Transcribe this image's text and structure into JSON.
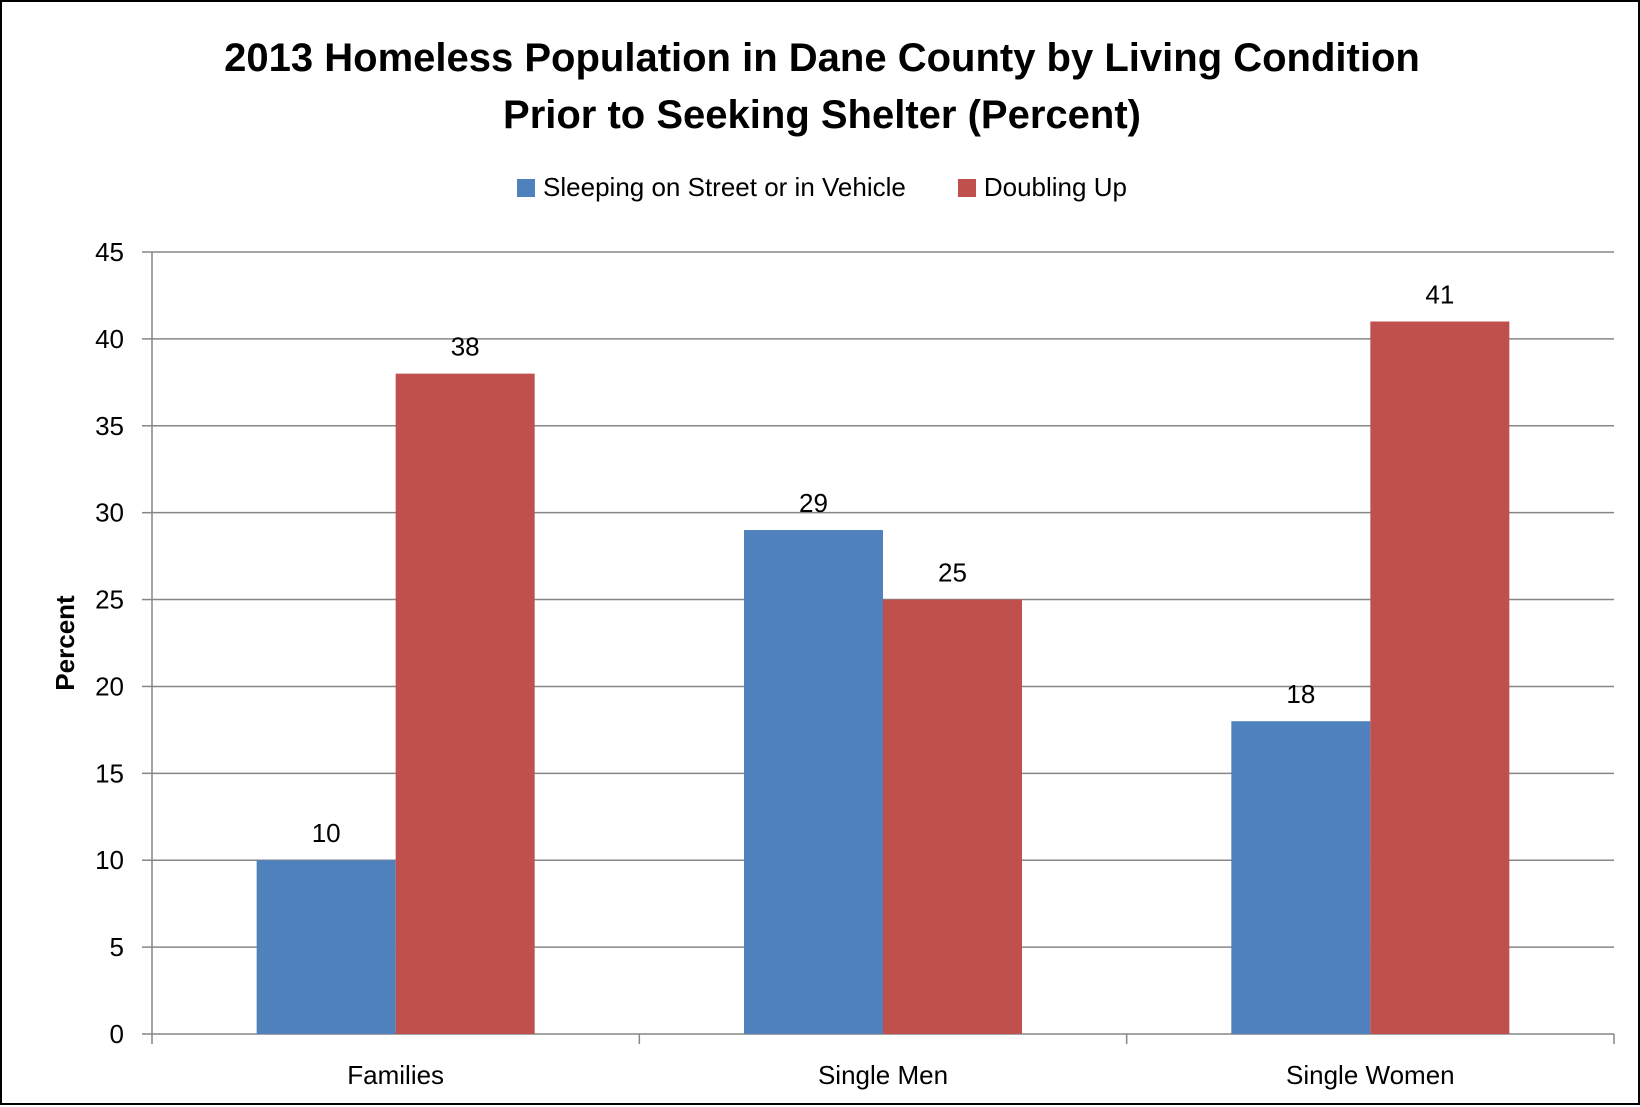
{
  "chart_data": {
    "type": "bar",
    "title_line1": "2013 Homeless Population in Dane County by Living Condition",
    "title_line2": "Prior to Seeking Shelter (Percent)",
    "xlabel": "",
    "ylabel": "Percent",
    "categories": [
      "Families",
      "Single Men",
      "Single Women"
    ],
    "series": [
      {
        "name": "Sleeping on Street or in Vehicle",
        "values": [
          10,
          29,
          18
        ],
        "color": "#4F81BD"
      },
      {
        "name": "Doubling Up",
        "values": [
          38,
          25,
          41
        ],
        "color": "#C0504D"
      }
    ],
    "ylim": [
      0,
      45
    ],
    "yticks": [
      0,
      5,
      10,
      15,
      20,
      25,
      30,
      35,
      40,
      45
    ],
    "grid": true,
    "legend_position": "top",
    "data_labels": true
  }
}
